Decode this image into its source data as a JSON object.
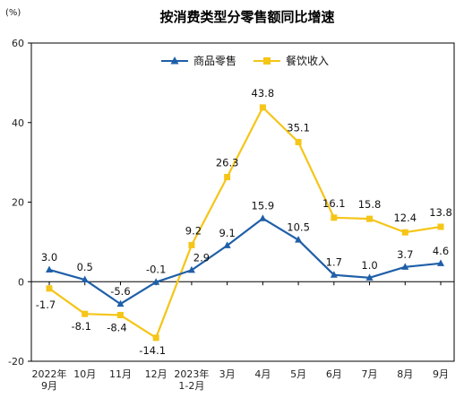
{
  "chart_data": {
    "type": "line",
    "title": "按消费类型分零售额同比增速",
    "unit": "(%)",
    "categories": [
      [
        "2022年",
        "9月"
      ],
      [
        "10月"
      ],
      [
        "11月"
      ],
      [
        "12月"
      ],
      [
        "2023年",
        "1-2月"
      ],
      [
        "3月"
      ],
      [
        "4月"
      ],
      [
        "5月"
      ],
      [
        "6月"
      ],
      [
        "7月"
      ],
      [
        "8月"
      ],
      [
        "9月"
      ]
    ],
    "ylim": [
      -20,
      60
    ],
    "yticks": [
      -20,
      0,
      20,
      40,
      60
    ],
    "ytick_labels": [
      "-20",
      "0",
      "20",
      "40",
      "60"
    ],
    "grid": false,
    "legend_position": "top",
    "series": [
      {
        "name": "商品零售",
        "color": "#1f5fa8",
        "marker": "triangle",
        "values": [
          3.0,
          0.5,
          -5.6,
          -0.1,
          2.9,
          9.1,
          15.9,
          10.5,
          1.7,
          1.0,
          3.7,
          4.6
        ],
        "labels": [
          "3.0",
          "0.5",
          "-5.6",
          "-0.1",
          "2.9",
          "9.1",
          "15.9",
          "10.5",
          "1.7",
          "1.0",
          "3.7",
          "4.6"
        ]
      },
      {
        "name": "餐饮收入",
        "color": "#f5c518",
        "marker": "square",
        "values": [
          -1.7,
          -8.1,
          -8.4,
          -14.1,
          9.2,
          26.3,
          43.8,
          35.1,
          16.1,
          15.8,
          12.4,
          13.8
        ],
        "labels": [
          "-1.7",
          "-8.1",
          "-8.4",
          "-14.1",
          "9.2",
          "26.3",
          "43.8",
          "35.1",
          "16.1",
          "15.8",
          "12.4",
          "13.8"
        ]
      }
    ]
  }
}
